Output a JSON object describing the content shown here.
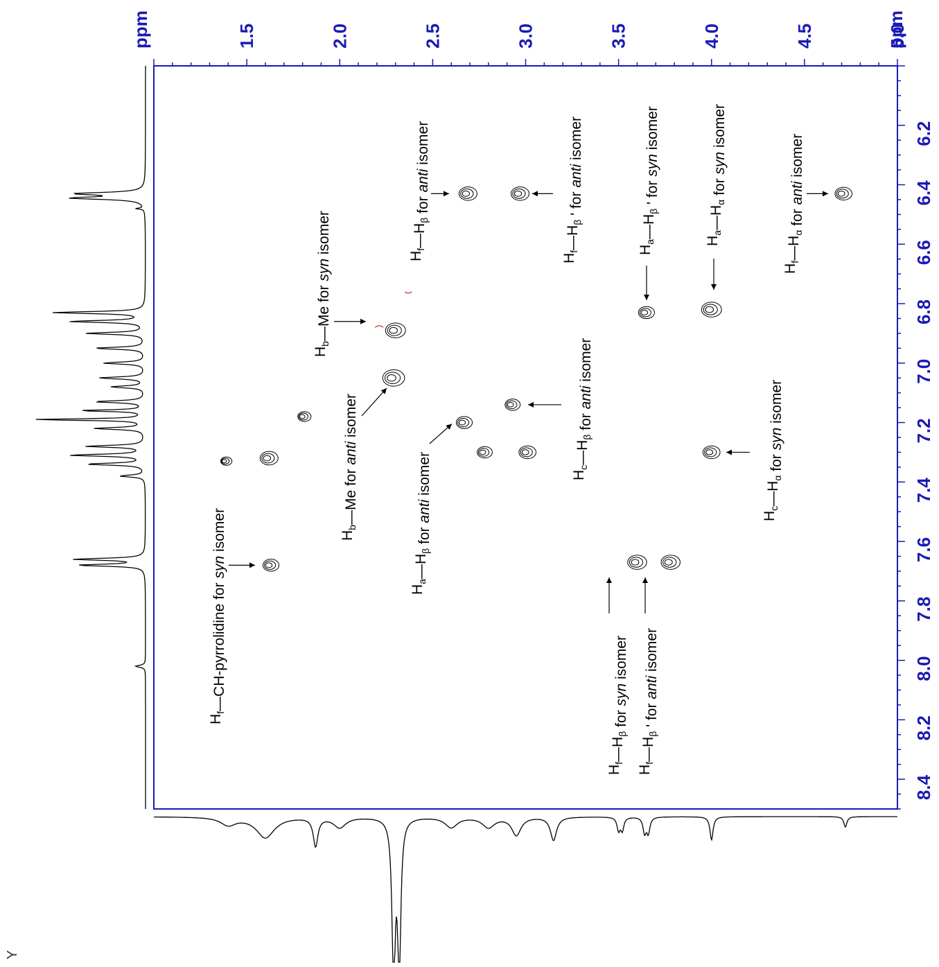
{
  "chart_data": {
    "type": "contour",
    "axes": {
      "top": {
        "unit": "ppm",
        "ticks": [
          "1.5",
          "2.0",
          "2.5",
          "3.0",
          "3.5",
          "4.0",
          "4.5",
          "5.0"
        ],
        "range": [
          1.0,
          5.0
        ]
      },
      "right": {
        "unit": "ppm",
        "ticks": [
          "6.2",
          "6.4",
          "6.6",
          "6.8",
          "7.0",
          "7.2",
          "7.4",
          "7.6",
          "7.8",
          "8.0",
          "8.2",
          "8.4"
        ],
        "range": [
          6.0,
          8.5
        ]
      }
    },
    "corner_label": "Y",
    "colors": {
      "axis": "#1a1ab4",
      "contour": "#000000",
      "minor_contour": "#c0392b"
    },
    "cross_peaks": [
      {
        "x": 2.69,
        "y": 6.43,
        "size": 1.0
      },
      {
        "x": 2.97,
        "y": 6.43,
        "size": 1.0
      },
      {
        "x": 4.71,
        "y": 6.43,
        "size": 0.9
      },
      {
        "x": 3.65,
        "y": 6.83,
        "size": 0.8
      },
      {
        "x": 4.0,
        "y": 6.82,
        "size": 1.2
      },
      {
        "x": 2.3,
        "y": 6.89,
        "size": 1.2
      },
      {
        "x": 2.29,
        "y": 7.05,
        "size": 1.4
      },
      {
        "x": 2.93,
        "y": 7.14,
        "size": 0.7
      },
      {
        "x": 2.67,
        "y": 7.2,
        "size": 0.8
      },
      {
        "x": 1.81,
        "y": 7.18,
        "size": 0.5
      },
      {
        "x": 1.62,
        "y": 7.32,
        "size": 1.0
      },
      {
        "x": 1.39,
        "y": 7.33,
        "size": 0.3
      },
      {
        "x": 2.78,
        "y": 7.3,
        "size": 0.7
      },
      {
        "x": 3.01,
        "y": 7.3,
        "size": 0.9
      },
      {
        "x": 4.0,
        "y": 7.3,
        "size": 0.9
      },
      {
        "x": 3.6,
        "y": 7.67,
        "size": 1.1
      },
      {
        "x": 3.78,
        "y": 7.67,
        "size": 1.1
      },
      {
        "x": 1.63,
        "y": 7.68,
        "size": 0.8
      }
    ],
    "annotations": [
      {
        "id": "a1",
        "parts": [
          [
            "H",
            ""
          ],
          [
            "f",
            "sub"
          ],
          [
            "—H",
            ""
          ],
          [
            "β",
            "sub"
          ],
          [
            "  for ",
            ""
          ],
          [
            "anti",
            "i"
          ],
          [
            " isomer",
            ""
          ]
        ]
      },
      {
        "id": "a2",
        "parts": [
          [
            "H",
            ""
          ],
          [
            "f",
            "sub"
          ],
          [
            "—H",
            ""
          ],
          [
            "β",
            "sub"
          ],
          [
            " ' for ",
            ""
          ],
          [
            "anti",
            "i"
          ],
          [
            " isomer",
            ""
          ]
        ]
      },
      {
        "id": "a3",
        "parts": [
          [
            "H",
            ""
          ],
          [
            "a",
            "sub"
          ],
          [
            "—H",
            ""
          ],
          [
            "β",
            "sub"
          ],
          [
            " ' for ",
            ""
          ],
          [
            "syn",
            "i"
          ],
          [
            " isomer",
            ""
          ]
        ]
      },
      {
        "id": "a4",
        "parts": [
          [
            "H",
            ""
          ],
          [
            "a",
            "sub"
          ],
          [
            "—H",
            ""
          ],
          [
            "α",
            "sub"
          ],
          [
            " for ",
            ""
          ],
          [
            "syn",
            "i"
          ],
          [
            " isomer",
            ""
          ]
        ]
      },
      {
        "id": "a5",
        "parts": [
          [
            "H",
            ""
          ],
          [
            "f",
            "sub"
          ],
          [
            "—H",
            ""
          ],
          [
            "α",
            "sub"
          ],
          [
            " for ",
            ""
          ],
          [
            "anti",
            "i"
          ],
          [
            " isomer",
            ""
          ]
        ]
      },
      {
        "id": "a6",
        "parts": [
          [
            "H",
            ""
          ],
          [
            "b",
            "sub"
          ],
          [
            "—Me for ",
            ""
          ],
          [
            "syn",
            "i"
          ],
          [
            " isomer",
            ""
          ]
        ]
      },
      {
        "id": "a7",
        "parts": [
          [
            "H",
            ""
          ],
          [
            "b",
            "sub"
          ],
          [
            "—Me for ",
            ""
          ],
          [
            "anti",
            "i"
          ],
          [
            " isomer",
            ""
          ]
        ]
      },
      {
        "id": "a8",
        "parts": [
          [
            "H",
            ""
          ],
          [
            "c",
            "sub"
          ],
          [
            "—H",
            ""
          ],
          [
            "β",
            "sub"
          ],
          [
            "  for ",
            ""
          ],
          [
            "anti",
            "i"
          ],
          [
            " isomer",
            ""
          ]
        ]
      },
      {
        "id": "a9",
        "parts": [
          [
            "H",
            ""
          ],
          [
            "a",
            "sub"
          ],
          [
            "—H",
            ""
          ],
          [
            "β",
            "sub"
          ],
          [
            "  for ",
            ""
          ],
          [
            "anti",
            "i"
          ],
          [
            " isomer",
            ""
          ]
        ]
      },
      {
        "id": "a10",
        "parts": [
          [
            "H",
            ""
          ],
          [
            "c",
            "sub"
          ],
          [
            "—H",
            ""
          ],
          [
            "α",
            "sub"
          ],
          [
            " for ",
            ""
          ],
          [
            "syn",
            "i"
          ],
          [
            " isomer",
            ""
          ]
        ]
      },
      {
        "id": "a11",
        "parts": [
          [
            "H",
            ""
          ],
          [
            "f",
            "sub"
          ],
          [
            "—CH-pyrrolidine for ",
            ""
          ],
          [
            "syn",
            "i"
          ],
          [
            " isomer",
            ""
          ]
        ]
      },
      {
        "id": "a12",
        "parts": [
          [
            "H",
            ""
          ],
          [
            "f",
            "sub"
          ],
          [
            "—H",
            ""
          ],
          [
            "β",
            "sub"
          ],
          [
            "  for ",
            ""
          ],
          [
            "syn",
            "i"
          ],
          [
            " isomer",
            ""
          ]
        ]
      },
      {
        "id": "a13",
        "parts": [
          [
            "H",
            ""
          ],
          [
            "f",
            "sub"
          ],
          [
            "—H",
            ""
          ],
          [
            "β",
            "sub"
          ],
          [
            " ' for ",
            ""
          ],
          [
            "anti",
            "i"
          ],
          [
            " isomer",
            ""
          ]
        ]
      }
    ]
  }
}
